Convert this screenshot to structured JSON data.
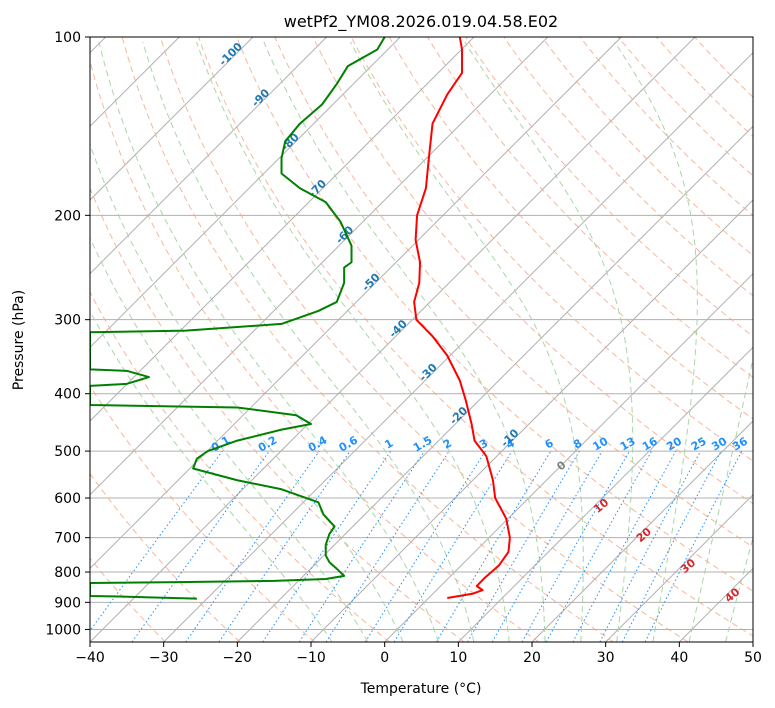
{
  "chart_data": {
    "type": "line",
    "title": "wetPf2_YM08.2026.019.04.58.E02",
    "xlabel": "Temperature (°C)",
    "ylabel": "Pressure (hPa)",
    "xlim": [
      -40,
      50
    ],
    "ylim": [
      1050,
      100
    ],
    "y_scale": "log",
    "grid": true,
    "x_ticks": [
      -40,
      -30,
      -20,
      -10,
      0,
      10,
      20,
      30,
      40,
      50
    ],
    "y_ticks": [
      1000,
      900,
      800,
      700,
      600,
      500,
      400,
      300,
      200,
      100
    ],
    "colors": {
      "temperature": "#ff0000",
      "dewpoint": "#008000",
      "isotherm": "#b0b0b0",
      "dry_adiabat": "#f4a582",
      "moist_adiabat": "#9fd29f",
      "mixing_ratio": "#1e90ff",
      "dry_label": "#1f77b4",
      "moist_label": "#d62728"
    },
    "series": [
      {
        "key": "temperature",
        "points": [
          [
            8.5,
            885
          ],
          [
            12,
            870
          ],
          [
            13.3,
            858
          ],
          [
            12.5,
            845
          ],
          [
            13.5,
            820
          ],
          [
            15.5,
            780
          ],
          [
            16.8,
            740
          ],
          [
            17,
            700
          ],
          [
            16.5,
            650
          ],
          [
            15,
            600
          ],
          [
            14.7,
            560
          ],
          [
            13.8,
            510
          ],
          [
            12.2,
            480
          ],
          [
            11.8,
            450
          ],
          [
            11,
            410
          ],
          [
            10.2,
            380
          ],
          [
            8.5,
            345
          ],
          [
            6.5,
            320
          ],
          [
            4.3,
            300
          ],
          [
            4,
            280
          ],
          [
            4.7,
            260
          ],
          [
            4.8,
            240
          ],
          [
            4.2,
            220
          ],
          [
            4.4,
            200
          ],
          [
            5.6,
            180
          ],
          [
            6,
            160
          ],
          [
            6.5,
            140
          ],
          [
            8.5,
            125
          ],
          [
            10.5,
            115
          ],
          [
            10.5,
            105
          ],
          [
            10.2,
            100
          ]
        ]
      },
      {
        "key": "dewpoint",
        "points": [
          [
            -25.5,
            887
          ],
          [
            -30,
            884
          ],
          [
            -36,
            880
          ],
          [
            -40,
            878
          ],
          [
            -40,
            835
          ],
          [
            -28,
            832
          ],
          [
            -15,
            828
          ],
          [
            -8,
            822
          ],
          [
            -5.5,
            812
          ],
          [
            -6.5,
            790
          ],
          [
            -7.5,
            770
          ],
          [
            -8,
            750
          ],
          [
            -8,
            720
          ],
          [
            -7.5,
            690
          ],
          [
            -6.8,
            670
          ],
          [
            -8.3,
            640
          ],
          [
            -9,
            610
          ],
          [
            -14,
            580
          ],
          [
            -20,
            560
          ],
          [
            -26,
            535
          ],
          [
            -25.5,
            515
          ],
          [
            -24,
            500
          ],
          [
            -20,
            480
          ],
          [
            -14,
            460
          ],
          [
            -10,
            450
          ],
          [
            -12,
            435
          ],
          [
            -20,
            422
          ],
          [
            -40,
            418
          ],
          [
            -40,
            388
          ],
          [
            -35,
            385
          ],
          [
            -32,
            375
          ],
          [
            -35,
            366
          ],
          [
            -40,
            364
          ],
          [
            -40,
            315
          ],
          [
            -27,
            313
          ],
          [
            -14,
            305
          ],
          [
            -9,
            290
          ],
          [
            -6.5,
            280
          ],
          [
            -5.5,
            260
          ],
          [
            -5.5,
            245
          ],
          [
            -4.5,
            240
          ],
          [
            -4.5,
            225
          ],
          [
            -6,
            205
          ],
          [
            -8,
            190
          ],
          [
            -11.5,
            180
          ],
          [
            -14,
            170
          ],
          [
            -14,
            160
          ],
          [
            -13.5,
            150
          ],
          [
            -11.5,
            140
          ],
          [
            -8.5,
            130
          ],
          [
            -6.5,
            120
          ],
          [
            -5,
            112
          ],
          [
            -1,
            105
          ],
          [
            0,
            100
          ]
        ]
      }
    ],
    "isotherms": [
      -120,
      -110,
      -100,
      -90,
      -80,
      -70,
      -60,
      -50,
      -40,
      -30,
      -20,
      -10,
      0,
      10,
      20,
      30,
      40,
      50
    ],
    "dry_adiabats": {
      "theta_K": [
        180,
        190,
        200,
        210,
        220,
        230,
        240,
        250,
        260,
        270,
        280,
        290,
        300,
        310,
        320,
        330,
        340,
        350,
        360,
        370,
        380,
        390,
        400,
        410,
        420,
        430,
        440,
        450
      ],
      "labels": [
        "-100",
        "-90",
        "-80",
        "-70",
        "-60",
        "-50",
        "-40",
        "-30",
        "-20",
        "-10"
      ]
    },
    "moist_adiabats": {
      "start_temps_at_1000": [
        -10,
        -5,
        0,
        5,
        10,
        15,
        20,
        25,
        30,
        35,
        40,
        45,
        50
      ],
      "labels": [
        "0",
        "10",
        "20",
        "30",
        "40"
      ]
    },
    "mixing_ratios": {
      "values": [
        0.1,
        0.2,
        0.4,
        0.6,
        1,
        1.5,
        2,
        3,
        4,
        6,
        8,
        10,
        13,
        16,
        20,
        25,
        30,
        36
      ],
      "labels": [
        "0.1",
        "0.2",
        "0.4",
        "0.6",
        "1",
        "1.5",
        "2",
        "3",
        "4",
        "6",
        "8",
        "10",
        "13",
        "16",
        "20",
        "25",
        "30",
        "36"
      ]
    }
  }
}
